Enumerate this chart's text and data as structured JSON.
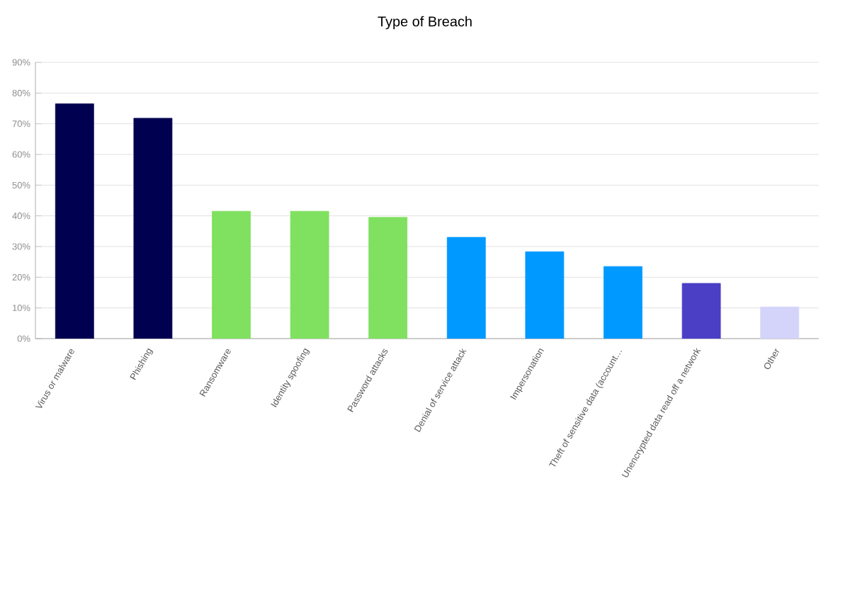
{
  "chart_data": {
    "type": "bar",
    "title": "Type of Breach",
    "categories": [
      "Virus or malware",
      "Phishing",
      "Ransomware",
      "Identity spoofing",
      "Password attacks",
      "Denial of service attack",
      "Impersonation",
      "Theft of sensitive data (account…",
      "Unencrypted data read off a network",
      "Other"
    ],
    "values": [
      76.5,
      71.8,
      41.5,
      41.5,
      39.5,
      33,
      28.3,
      23.5,
      18,
      10.3
    ],
    "colors": [
      "#000050",
      "#000050",
      "#80e060",
      "#80e060",
      "#80e060",
      "#0099ff",
      "#0099ff",
      "#0099ff",
      "#4b3fc6",
      "#d4d4fb"
    ],
    "ylim": [
      0,
      90
    ],
    "yticks": [
      {
        "value": 0,
        "label": "0%"
      },
      {
        "value": 10,
        "label": "10%"
      },
      {
        "value": 20,
        "label": "20%"
      },
      {
        "value": 30,
        "label": "30%"
      },
      {
        "value": 40,
        "label": "40%"
      },
      {
        "value": 50,
        "label": "50%"
      },
      {
        "value": 60,
        "label": "60%"
      },
      {
        "value": 70,
        "label": "70%"
      },
      {
        "value": 80,
        "label": "80%"
      },
      {
        "value": 90,
        "label": "90%"
      }
    ],
    "grid": "y"
  }
}
